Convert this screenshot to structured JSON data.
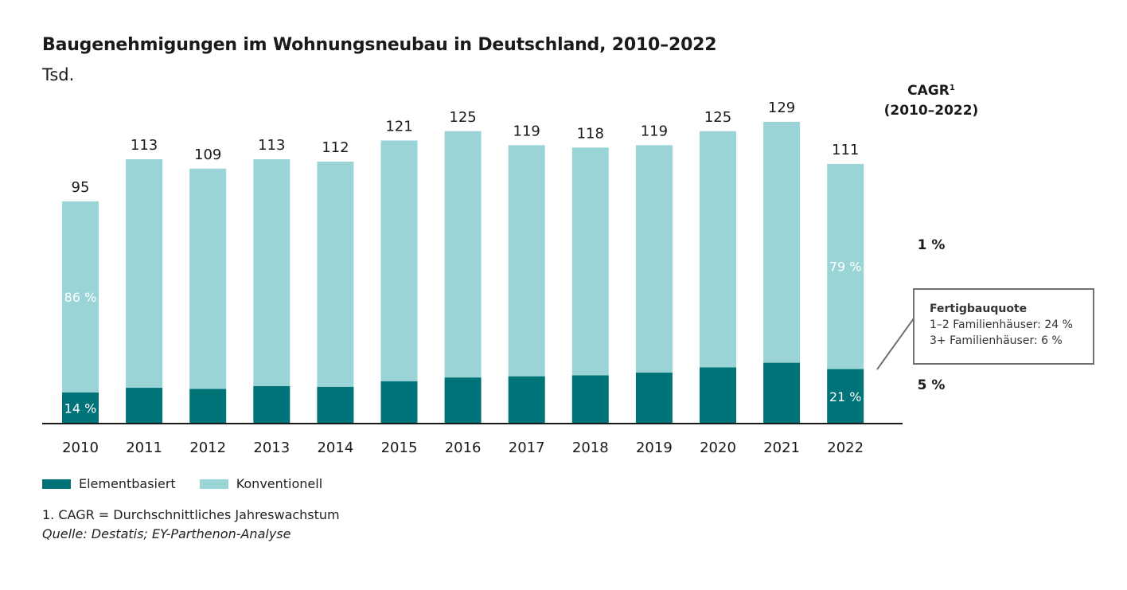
{
  "title": "Baugenehmigungen im Wohnungsneubau in Deutschland, 2010–2022",
  "unit": "Tsd.",
  "cagr": {
    "title_line1": "CAGR",
    "superscript": "1",
    "title_line2": "(2010–2022)",
    "konventionell": "1 %",
    "elementbasiert": "5 %"
  },
  "callout": {
    "title": "Fertigbauquote",
    "line1": "1–2 Familienhäuser: 24 %",
    "line2": "3+  Familienhäuser: 6 %"
  },
  "legend": {
    "elementbasiert": "Elementbasiert",
    "konventionell": "Konventionell"
  },
  "footnote": "1. CAGR = Durchschnittliches Jahreswachstum",
  "source": "Quelle: Destatis; EY-Parthenon-Analyse",
  "colors": {
    "elementbasiert": "#007378",
    "konventionell": "#9ad4d6",
    "text": "#1a1a1a",
    "axis": "#1a1a1a"
  },
  "chart_data": {
    "type": "bar",
    "stacked": true,
    "categories": [
      "2010",
      "2011",
      "2012",
      "2013",
      "2014",
      "2015",
      "2016",
      "2017",
      "2018",
      "2019",
      "2020",
      "2021",
      "2022"
    ],
    "totals": [
      95,
      113,
      109,
      113,
      112,
      121,
      125,
      119,
      118,
      119,
      125,
      129,
      111
    ],
    "series": [
      {
        "name": "Elementbasiert",
        "values": [
          13.3,
          15.3,
          14.8,
          16.0,
          15.7,
          18.1,
          19.7,
          20.2,
          20.6,
          21.8,
          24.0,
          26.0,
          23.3
        ]
      },
      {
        "name": "Konventionell",
        "values": [
          81.7,
          97.7,
          94.2,
          97.0,
          96.3,
          102.9,
          105.3,
          98.8,
          97.4,
          97.2,
          101.0,
          103.0,
          87.7
        ]
      }
    ],
    "segment_labels": [
      {
        "category": "2010",
        "series": "Konventionell",
        "text": "86 %"
      },
      {
        "category": "2010",
        "series": "Elementbasiert",
        "text": "14 %"
      },
      {
        "category": "2022",
        "series": "Konventionell",
        "text": "79 %"
      },
      {
        "category": "2022",
        "series": "Elementbasiert",
        "text": "21 %"
      }
    ],
    "ylim": [
      0,
      129
    ],
    "grid": false,
    "legend_position": "bottom-left"
  }
}
